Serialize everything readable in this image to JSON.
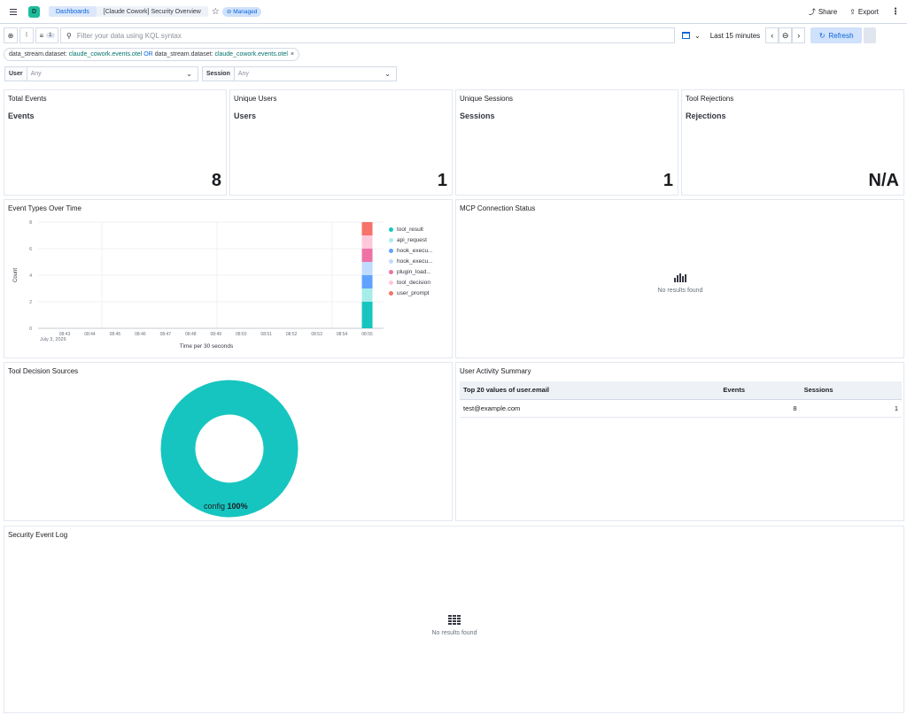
{
  "breadcrumbs": [
    "Dashboards",
    "[Claude Cowork] Security Overview"
  ],
  "managed_badge": "Managed",
  "header": {
    "share": "Share",
    "export": "Export"
  },
  "query": {
    "filter_count": "1",
    "placeholder": "Filter your data using KQL syntax",
    "time_range": "Last 15 minutes",
    "refresh": "Refresh"
  },
  "filter_pill": {
    "field1": "data_stream.dataset:",
    "value1": "claude_cowork.events.otel",
    "or": "OR",
    "field2": "data_stream.dataset:",
    "value2": "claude_cowork.events.otel"
  },
  "controls": [
    {
      "label": "User",
      "value": "Any"
    },
    {
      "label": "Session",
      "value": "Any"
    }
  ],
  "metrics": [
    {
      "title": "Total Events",
      "label": "Events",
      "value": "8"
    },
    {
      "title": "Unique Users",
      "label": "Users",
      "value": "1"
    },
    {
      "title": "Unique Sessions",
      "label": "Sessions",
      "value": "1"
    },
    {
      "title": "Tool Rejections",
      "label": "Rejections",
      "value": "N/A"
    }
  ],
  "event_types_panel": {
    "title": "Event Types Over Time"
  },
  "mcp_panel": {
    "title": "MCP Connection Status",
    "empty": "No results found"
  },
  "tool_decision_panel": {
    "title": "Tool Decision Sources",
    "slice_label": "config",
    "slice_pct": "100%"
  },
  "user_activity_panel": {
    "title": "User Activity Summary",
    "columns": [
      "Top 20 values of user.email",
      "Events",
      "Sessions"
    ],
    "rows": [
      [
        "test@example.com",
        "8",
        "1"
      ]
    ]
  },
  "security_log_panel": {
    "title": "Security Event Log",
    "empty": "No results found"
  },
  "chart_data": [
    {
      "type": "bar",
      "title": "Event Types Over Time",
      "xlabel": "Time per 30 seconds",
      "ylabel": "Count",
      "x_date_label": "July 3, 2026",
      "categories": [
        "08:43",
        "08:44",
        "08:45",
        "08:46",
        "08:47",
        "08:48",
        "08:49",
        "08:50",
        "08:51",
        "08:52",
        "08:53",
        "08:54",
        "08:55",
        "08:56"
      ],
      "yticks": [
        0,
        2,
        4,
        6,
        8
      ],
      "ylim": [
        0,
        8
      ],
      "stacked": true,
      "legend_position": "right",
      "series": [
        {
          "name": "tool_result",
          "color": "#16c5c0",
          "values": [
            0,
            0,
            0,
            0,
            0,
            0,
            0,
            0,
            0,
            0,
            0,
            0,
            2,
            0
          ]
        },
        {
          "name": "api_request",
          "color": "#a6edea",
          "values": [
            0,
            0,
            0,
            0,
            0,
            0,
            0,
            0,
            0,
            0,
            0,
            0,
            1,
            0
          ]
        },
        {
          "name": "hook_execu...",
          "color": "#61a2ff",
          "values": [
            0,
            0,
            0,
            0,
            0,
            0,
            0,
            0,
            0,
            0,
            0,
            0,
            1,
            0
          ]
        },
        {
          "name": "hook_execu...",
          "color": "#bfdbff",
          "values": [
            0,
            0,
            0,
            0,
            0,
            0,
            0,
            0,
            0,
            0,
            0,
            0,
            1,
            0
          ]
        },
        {
          "name": "plugin_load...",
          "color": "#ee72a6",
          "values": [
            0,
            0,
            0,
            0,
            0,
            0,
            0,
            0,
            0,
            0,
            0,
            0,
            1,
            0
          ]
        },
        {
          "name": "tool_decision",
          "color": "#ffc7db",
          "values": [
            0,
            0,
            0,
            0,
            0,
            0,
            0,
            0,
            0,
            0,
            0,
            0,
            1,
            0
          ]
        },
        {
          "name": "user_prompt",
          "color": "#f6726a",
          "values": [
            0,
            0,
            0,
            0,
            0,
            0,
            0,
            0,
            0,
            0,
            0,
            0,
            1,
            0
          ]
        }
      ]
    },
    {
      "type": "pie",
      "title": "Tool Decision Sources",
      "donut": true,
      "slices": [
        {
          "label": "config",
          "value": 100,
          "color": "#16c5c0"
        }
      ]
    }
  ]
}
